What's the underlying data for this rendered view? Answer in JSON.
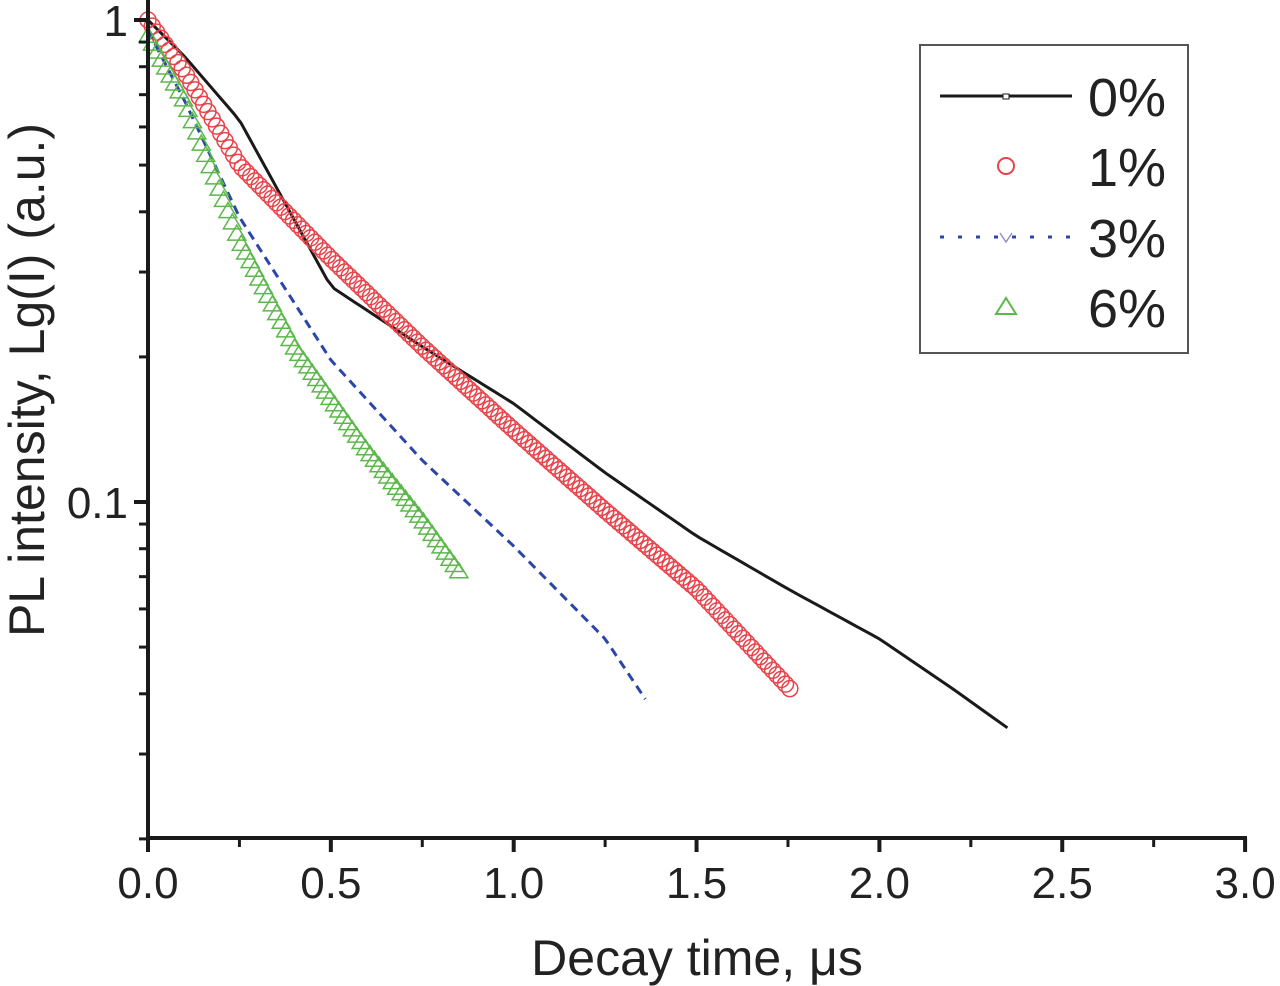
{
  "chart_data": {
    "type": "scatter",
    "title": "",
    "xlabel": "Decay time, μs",
    "ylabel": "PL intensity, Lg(I) (a.u.)",
    "xlim": [
      0.0,
      3.0
    ],
    "ylim": [
      0.02,
      1.05
    ],
    "yscale": "log",
    "grid": false,
    "legend_position": "upper right",
    "x_ticks": [
      "0.0",
      "0.5",
      "1.0",
      "1.5",
      "2.0",
      "2.5",
      "3.0"
    ],
    "y_ticks": [
      "0.1",
      "1"
    ],
    "series": [
      {
        "name": "0%",
        "style": "solid-line",
        "color": "#1a1a1a",
        "x": [
          0.0,
          0.1,
          0.25,
          0.5,
          0.75,
          1.0,
          1.25,
          1.5,
          1.75,
          2.0,
          2.2,
          2.35
        ],
        "y": [
          1.0,
          0.84,
          0.62,
          0.28,
          0.21,
          0.16,
          0.115,
          0.085,
          0.066,
          0.052,
          0.041,
          0.034
        ]
      },
      {
        "name": "1%",
        "style": "open-circle",
        "color": "#e8434a",
        "x": [
          0.0,
          0.1,
          0.25,
          0.5,
          0.75,
          1.0,
          1.25,
          1.5,
          1.755
        ],
        "y": [
          1.0,
          0.78,
          0.5,
          0.32,
          0.21,
          0.141,
          0.096,
          0.066,
          0.041
        ]
      },
      {
        "name": "3%",
        "style": "dashed-line",
        "color": "#2b46a8",
        "x": [
          0.0,
          0.1,
          0.25,
          0.5,
          0.75,
          1.0,
          1.25,
          1.36
        ],
        "y": [
          0.95,
          0.68,
          0.39,
          0.197,
          0.122,
          0.081,
          0.052,
          0.039
        ]
      },
      {
        "name": "6%",
        "style": "open-triangle",
        "color": "#5cb84a",
        "x": [
          0.0,
          0.1,
          0.25,
          0.4,
          0.6,
          0.75,
          0.85
        ],
        "y": [
          0.93,
          0.68,
          0.35,
          0.21,
          0.128,
          0.092,
          0.072
        ]
      }
    ]
  },
  "legend": {
    "items": [
      {
        "label": "0%"
      },
      {
        "label": "1%"
      },
      {
        "label": "3%"
      },
      {
        "label": "6%"
      }
    ]
  },
  "axes": {
    "x_title": "Decay time, μs",
    "y_title": "PL intensity, Lg(I) (a.u.)"
  }
}
